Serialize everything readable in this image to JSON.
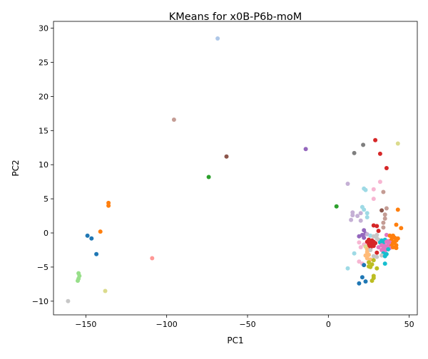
{
  "chart_data": {
    "type": "scatter",
    "title": "KMeans for x0B-P6b-moM",
    "xlabel": "PC1",
    "ylabel": "PC2",
    "xlim": [
      -170,
      55
    ],
    "ylim": [
      -12,
      31
    ],
    "xticks": [
      -150,
      -100,
      -50,
      0,
      50
    ],
    "yticks": [
      -10,
      -5,
      0,
      5,
      10,
      15,
      20,
      25,
      30
    ],
    "xtick_labels": [
      "−150",
      "−100",
      "−50",
      "0",
      "50"
    ],
    "ytick_labels": [
      "−10",
      "−5",
      "0",
      "5",
      "10",
      "15",
      "20",
      "25",
      "30"
    ],
    "grid": false,
    "legend": "none",
    "points": [
      {
        "x": -68.5,
        "y": 28.5,
        "color": "#aec7e8"
      },
      {
        "x": -95.5,
        "y": 16.6,
        "color": "#c49c94"
      },
      {
        "x": -63.0,
        "y": 11.2,
        "color": "#8c564b"
      },
      {
        "x": -74.0,
        "y": 8.2,
        "color": "#2ca02c"
      },
      {
        "x": -14.0,
        "y": 12.3,
        "color": "#9467bd"
      },
      {
        "x": 5.0,
        "y": 3.9,
        "color": "#2ca02c"
      },
      {
        "x": -136.0,
        "y": 4.4,
        "color": "#ff7f0e"
      },
      {
        "x": -136.0,
        "y": 4.0,
        "color": "#ff7f0e"
      },
      {
        "x": -141.0,
        "y": 0.2,
        "color": "#ff7f0e"
      },
      {
        "x": -149.0,
        "y": -0.4,
        "color": "#1f77b4"
      },
      {
        "x": -146.5,
        "y": -0.8,
        "color": "#1f77b4"
      },
      {
        "x": -143.5,
        "y": -3.1,
        "color": "#1f77b4"
      },
      {
        "x": -109.0,
        "y": -3.7,
        "color": "#ff9896"
      },
      {
        "x": -154.5,
        "y": -5.9,
        "color": "#98df8a"
      },
      {
        "x": -154.0,
        "y": -6.3,
        "color": "#98df8a"
      },
      {
        "x": -154.5,
        "y": -6.7,
        "color": "#98df8a"
      },
      {
        "x": -155.0,
        "y": -7.0,
        "color": "#98df8a"
      },
      {
        "x": -138.0,
        "y": -8.5,
        "color": "#dbdb8d"
      },
      {
        "x": -161.0,
        "y": -10.0,
        "color": "#c7c7c7"
      },
      {
        "x": 29.0,
        "y": 13.6,
        "color": "#d62728"
      },
      {
        "x": 21.5,
        "y": 12.9,
        "color": "#7f7f7f"
      },
      {
        "x": 43.0,
        "y": 13.1,
        "color": "#dbdb8d"
      },
      {
        "x": 16.0,
        "y": 11.7,
        "color": "#7f7f7f"
      },
      {
        "x": 32.0,
        "y": 11.6,
        "color": "#d62728"
      },
      {
        "x": 36.0,
        "y": 9.5,
        "color": "#d62728"
      },
      {
        "x": 32.0,
        "y": 7.5,
        "color": "#f7b6d2"
      },
      {
        "x": 12.0,
        "y": 7.2,
        "color": "#c5b0d5"
      },
      {
        "x": 22.0,
        "y": 6.5,
        "color": "#9edae5"
      },
      {
        "x": 23.0,
        "y": 6.3,
        "color": "#9edae5"
      },
      {
        "x": 28.0,
        "y": 6.4,
        "color": "#f7b6d2"
      },
      {
        "x": 34.0,
        "y": 6.0,
        "color": "#c49c94"
      },
      {
        "x": 28.0,
        "y": 5.0,
        "color": "#f7b6d2"
      },
      {
        "x": 21.0,
        "y": 3.8,
        "color": "#9edae5"
      },
      {
        "x": 22.0,
        "y": 3.4,
        "color": "#9edae5"
      },
      {
        "x": 33.0,
        "y": 3.3,
        "color": "#8c564b"
      },
      {
        "x": 36.0,
        "y": 3.6,
        "color": "#c49c94"
      },
      {
        "x": 43.0,
        "y": 3.4,
        "color": "#ff7f0e"
      },
      {
        "x": 24.0,
        "y": 2.9,
        "color": "#9edae5"
      },
      {
        "x": 15.0,
        "y": 3.0,
        "color": "#c5b0d5"
      },
      {
        "x": 15.0,
        "y": 2.6,
        "color": "#c5b0d5"
      },
      {
        "x": 20.0,
        "y": 2.9,
        "color": "#c5b0d5"
      },
      {
        "x": 18.0,
        "y": 2.5,
        "color": "#c5b0d5"
      },
      {
        "x": 24.0,
        "y": 2.3,
        "color": "#9edae5"
      },
      {
        "x": 35.0,
        "y": 2.7,
        "color": "#c49c94"
      },
      {
        "x": 35.0,
        "y": 2.1,
        "color": "#c49c94"
      },
      {
        "x": 14.0,
        "y": 1.9,
        "color": "#c5b0d5"
      },
      {
        "x": 20.0,
        "y": 1.8,
        "color": "#c5b0d5"
      },
      {
        "x": 34.0,
        "y": 1.5,
        "color": "#c49c94"
      },
      {
        "x": 42.0,
        "y": 1.2,
        "color": "#ff7f0e"
      },
      {
        "x": 28.0,
        "y": 1.1,
        "color": "#d62728"
      },
      {
        "x": 30.0,
        "y": 1.0,
        "color": "#d62728"
      },
      {
        "x": 34.0,
        "y": 0.8,
        "color": "#c49c94"
      },
      {
        "x": 45.0,
        "y": 0.7,
        "color": "#ff7f0e"
      },
      {
        "x": 22.0,
        "y": 0.4,
        "color": "#9467bd"
      },
      {
        "x": 31.0,
        "y": 0.3,
        "color": "#d62728"
      },
      {
        "x": 23.0,
        "y": -0.1,
        "color": "#9467bd"
      },
      {
        "x": 21.0,
        "y": -0.3,
        "color": "#9467bd"
      },
      {
        "x": 24.0,
        "y": -0.2,
        "color": "#c5b0d5"
      },
      {
        "x": 26.0,
        "y": -0.4,
        "color": "#9edae5"
      },
      {
        "x": 28.0,
        "y": -0.5,
        "color": "#c7c7c7"
      },
      {
        "x": 30.0,
        "y": -0.3,
        "color": "#c7c7c7"
      },
      {
        "x": 36.0,
        "y": -0.3,
        "color": "#e377c2"
      },
      {
        "x": 38.0,
        "y": -0.4,
        "color": "#ff7f0e"
      },
      {
        "x": 39.0,
        "y": -0.5,
        "color": "#ff7f0e"
      },
      {
        "x": 40.0,
        "y": -0.4,
        "color": "#ff7f0e"
      },
      {
        "x": 19.0,
        "y": -0.5,
        "color": "#9467bd"
      },
      {
        "x": 22.0,
        "y": -0.7,
        "color": "#9467bd"
      },
      {
        "x": 30.0,
        "y": -0.8,
        "color": "#c7c7c7"
      },
      {
        "x": 41.0,
        "y": -0.7,
        "color": "#ff7f0e"
      },
      {
        "x": 43.0,
        "y": -0.8,
        "color": "#ff7f0e"
      },
      {
        "x": 25.0,
        "y": -1.0,
        "color": "#d62728"
      },
      {
        "x": 27.0,
        "y": -1.1,
        "color": "#d62728"
      },
      {
        "x": 31.0,
        "y": -1.0,
        "color": "#c7c7c7"
      },
      {
        "x": 33.0,
        "y": -1.1,
        "color": "#17becf"
      },
      {
        "x": 35.0,
        "y": -1.0,
        "color": "#17becf"
      },
      {
        "x": 37.0,
        "y": -1.2,
        "color": "#e377c2"
      },
      {
        "x": 39.0,
        "y": -1.0,
        "color": "#ff7f0e"
      },
      {
        "x": 42.0,
        "y": -1.1,
        "color": "#ff7f0e"
      },
      {
        "x": 19.0,
        "y": -1.4,
        "color": "#f7b6d2"
      },
      {
        "x": 24.0,
        "y": -1.3,
        "color": "#d62728"
      },
      {
        "x": 26.0,
        "y": -1.4,
        "color": "#d62728"
      },
      {
        "x": 28.0,
        "y": -1.3,
        "color": "#d62728"
      },
      {
        "x": 29.0,
        "y": -1.5,
        "color": "#d62728"
      },
      {
        "x": 32.0,
        "y": -1.4,
        "color": "#17becf"
      },
      {
        "x": 34.0,
        "y": -1.5,
        "color": "#17becf"
      },
      {
        "x": 36.0,
        "y": -1.3,
        "color": "#e377c2"
      },
      {
        "x": 38.0,
        "y": -1.4,
        "color": "#e377c2"
      },
      {
        "x": 40.0,
        "y": -1.5,
        "color": "#ff7f0e"
      },
      {
        "x": 41.0,
        "y": -1.3,
        "color": "#ff7f0e"
      },
      {
        "x": 22.0,
        "y": -1.7,
        "color": "#f7b6d2"
      },
      {
        "x": 25.0,
        "y": -1.8,
        "color": "#d62728"
      },
      {
        "x": 27.0,
        "y": -1.7,
        "color": "#d62728"
      },
      {
        "x": 28.0,
        "y": -1.9,
        "color": "#d62728"
      },
      {
        "x": 33.0,
        "y": -1.8,
        "color": "#e377c2"
      },
      {
        "x": 35.0,
        "y": -1.9,
        "color": "#e377c2"
      },
      {
        "x": 37.0,
        "y": -1.8,
        "color": "#e377c2"
      },
      {
        "x": 39.0,
        "y": -1.9,
        "color": "#ff7f0e"
      },
      {
        "x": 42.0,
        "y": -1.8,
        "color": "#ff7f0e"
      },
      {
        "x": 20.0,
        "y": -2.1,
        "color": "#f7b6d2"
      },
      {
        "x": 23.0,
        "y": -2.0,
        "color": "#dbdb8d"
      },
      {
        "x": 26.0,
        "y": -2.2,
        "color": "#d62728"
      },
      {
        "x": 31.0,
        "y": -2.1,
        "color": "#e377c2"
      },
      {
        "x": 34.0,
        "y": -2.2,
        "color": "#e377c2"
      },
      {
        "x": 36.0,
        "y": -2.1,
        "color": "#e377c2"
      },
      {
        "x": 38.0,
        "y": -2.2,
        "color": "#e377c2"
      },
      {
        "x": 40.0,
        "y": -2.1,
        "color": "#ff7f0e"
      },
      {
        "x": 42.0,
        "y": -2.2,
        "color": "#ff7f0e"
      },
      {
        "x": 24.0,
        "y": -2.4,
        "color": "#ffbb78"
      },
      {
        "x": 26.0,
        "y": -2.5,
        "color": "#c7c7c7"
      },
      {
        "x": 33.0,
        "y": -2.5,
        "color": "#e377c2"
      },
      {
        "x": 35.0,
        "y": -2.6,
        "color": "#e377c2"
      },
      {
        "x": 37.0,
        "y": -2.4,
        "color": "#17becf"
      },
      {
        "x": 24.0,
        "y": -2.8,
        "color": "#ffbb78"
      },
      {
        "x": 30.0,
        "y": -2.9,
        "color": "#d62728"
      },
      {
        "x": 34.0,
        "y": -3.0,
        "color": "#17becf"
      },
      {
        "x": 36.0,
        "y": -3.1,
        "color": "#17becf"
      },
      {
        "x": 16.0,
        "y": -3.0,
        "color": "#9edae5"
      },
      {
        "x": 23.0,
        "y": -3.3,
        "color": "#ffbb78"
      },
      {
        "x": 25.0,
        "y": -3.2,
        "color": "#ffbb78"
      },
      {
        "x": 28.0,
        "y": -3.4,
        "color": "#c7c7c7"
      },
      {
        "x": 30.0,
        "y": -3.5,
        "color": "#c7c7c7"
      },
      {
        "x": 33.0,
        "y": -3.3,
        "color": "#c7c7c7"
      },
      {
        "x": 35.0,
        "y": -3.4,
        "color": "#17becf"
      },
      {
        "x": 24.0,
        "y": -3.7,
        "color": "#ffbb78"
      },
      {
        "x": 26.0,
        "y": -3.9,
        "color": "#ffbb78"
      },
      {
        "x": 19.0,
        "y": -4.2,
        "color": "#f7b6d2"
      },
      {
        "x": 28.0,
        "y": -4.0,
        "color": "#bcbd22"
      },
      {
        "x": 21.0,
        "y": -4.5,
        "color": "#f7b6d2"
      },
      {
        "x": 25.0,
        "y": -4.3,
        "color": "#bcbd22"
      },
      {
        "x": 27.0,
        "y": -4.6,
        "color": "#bcbd22"
      },
      {
        "x": 35.0,
        "y": -4.5,
        "color": "#17becf"
      },
      {
        "x": 22.0,
        "y": -4.7,
        "color": "#1f77b4"
      },
      {
        "x": 25.0,
        "y": -4.9,
        "color": "#bcbd22"
      },
      {
        "x": 12.0,
        "y": -5.2,
        "color": "#9edae5"
      },
      {
        "x": 26.0,
        "y": -5.0,
        "color": "#bcbd22"
      },
      {
        "x": 30.0,
        "y": -5.2,
        "color": "#bcbd22"
      },
      {
        "x": 28.0,
        "y": -6.3,
        "color": "#bcbd22"
      },
      {
        "x": 21.0,
        "y": -6.5,
        "color": "#1f77b4"
      },
      {
        "x": 28.0,
        "y": -6.6,
        "color": "#bcbd22"
      },
      {
        "x": 27.0,
        "y": -7.0,
        "color": "#bcbd22"
      },
      {
        "x": 23.0,
        "y": -7.1,
        "color": "#1f77b4"
      },
      {
        "x": 19.0,
        "y": -7.4,
        "color": "#1f77b4"
      }
    ]
  }
}
